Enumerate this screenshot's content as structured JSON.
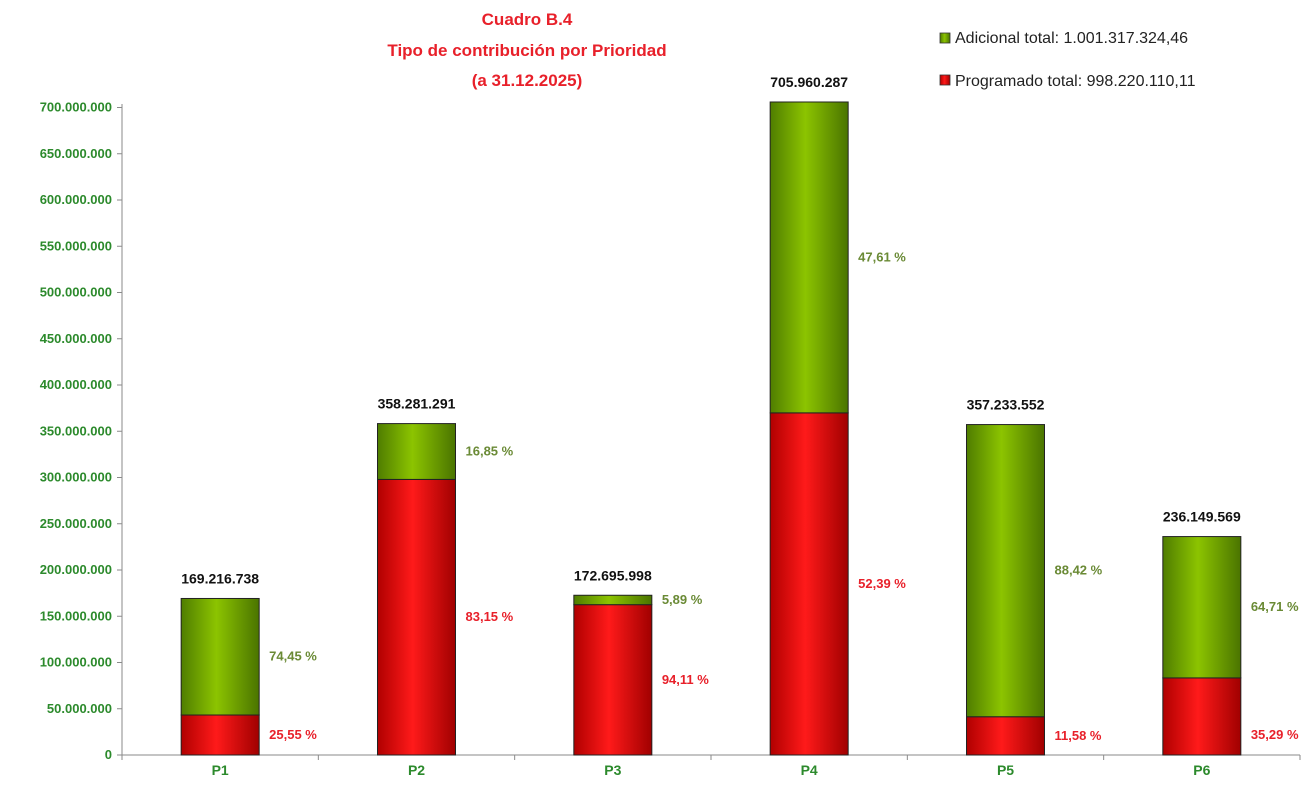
{
  "chart_data": {
    "type": "bar",
    "stacked": true,
    "title_lines": [
      "Cuadro B.4",
      "Tipo de contribución  por Prioridad",
      "(a 31.12.2025)"
    ],
    "categories": [
      "P1",
      "P2",
      "P3",
      "P4",
      "P5",
      "P6"
    ],
    "totals": [
      169216738,
      358281291,
      172695998,
      705960287,
      357233552,
      236149569
    ],
    "total_labels": [
      "169.216.738",
      "358.281.291",
      "172.695.998",
      "705.960.287",
      "357.233.552",
      "236.149.569"
    ],
    "series": [
      {
        "name": "Programado total: 998.220.110,11",
        "color": "#e00000",
        "values": [
          43234876,
          297914894,
          162524173,
          369852594,
          41365645,
          83337183
        ],
        "percent_labels": [
          "25,55 %",
          "83,15 %",
          "94,11 %",
          "52,39 %",
          "11,58 %",
          "35,29 %"
        ]
      },
      {
        "name": "Adicional total: 1.001.317.324,46",
        "color": "#6aa000",
        "values": [
          125981862,
          60366397,
          10171825,
          336107693,
          315867907,
          152812386
        ],
        "percent_labels": [
          "74,45 %",
          "16,85 %",
          "5,89 %",
          "47,61 %",
          "88,42 %",
          "64,71 %"
        ]
      }
    ],
    "ylim": [
      0,
      700000000
    ],
    "yticks": [
      0,
      50000000,
      100000000,
      150000000,
      200000000,
      250000000,
      300000000,
      350000000,
      400000000,
      450000000,
      500000000,
      550000000,
      600000000,
      650000000,
      700000000
    ],
    "ytick_labels": [
      "0",
      "50.000.000",
      "100.000.000",
      "150.000.000",
      "200.000.000",
      "250.000.000",
      "300.000.000",
      "350.000.000",
      "400.000.000",
      "450.000.000",
      "500.000.000",
      "550.000.000",
      "600.000.000",
      "650.000.000",
      "700.000.000"
    ],
    "legend_position": "top-right",
    "grid": false
  }
}
